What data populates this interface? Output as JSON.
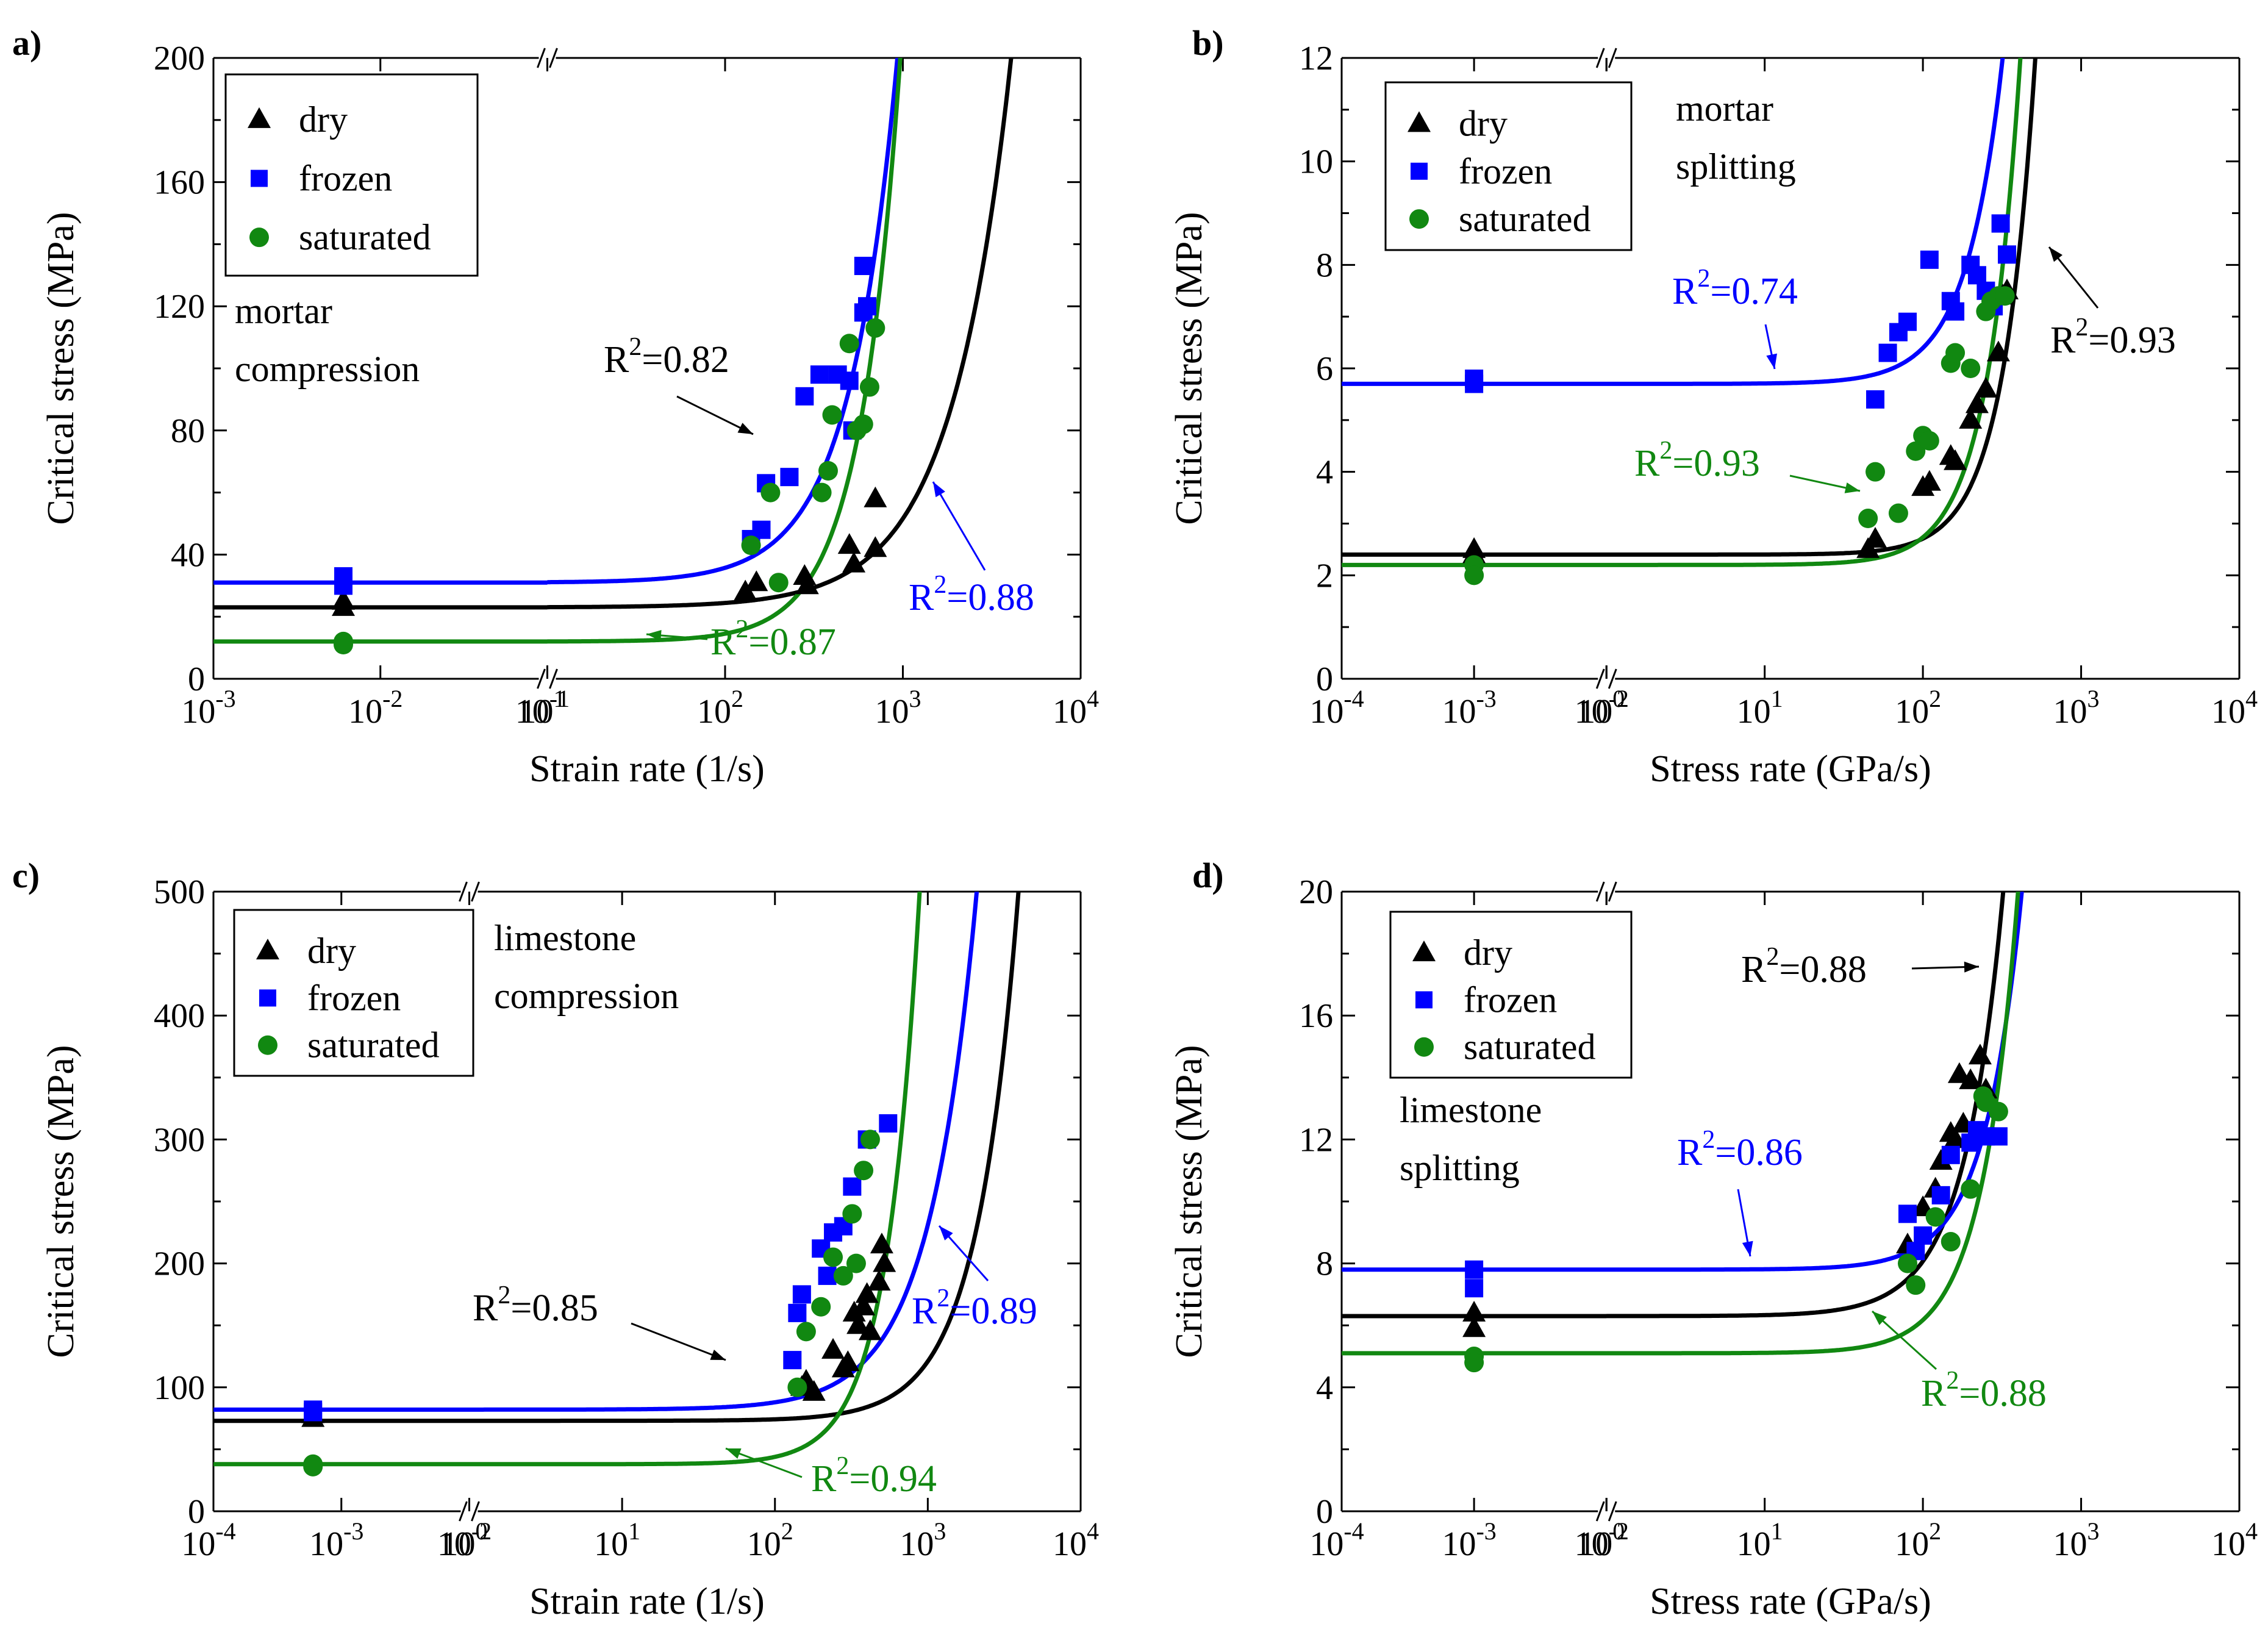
{
  "chart_data": [
    {
      "panel": "a)",
      "type": "scatter",
      "xlabel": "Strain rate (1/s)",
      "ylabel": "Critical stress (MPa)",
      "x_scale": "log, broken axis",
      "x_segments": [
        [
          -3,
          -1
        ],
        [
          1,
          4
        ]
      ],
      "x_ticks": [
        {
          "exp": -3,
          "label": "10"
        },
        {
          "exp": -2,
          "label": "10"
        },
        {
          "exp": -1,
          "label": "10"
        },
        {
          "exp": 1,
          "label": "10"
        },
        {
          "exp": 2,
          "label": "10"
        },
        {
          "exp": 3,
          "label": "10"
        },
        {
          "exp": 4,
          "label": "10"
        }
      ],
      "ylim": [
        0,
        200
      ],
      "y_ticks": [
        0,
        40,
        80,
        120,
        160,
        200
      ],
      "note_text": [
        "mortar",
        "compression"
      ],
      "legend": [
        "dry",
        "frozen",
        "saturated"
      ],
      "series": [
        {
          "name": "dry",
          "color": "#000000",
          "marker": "triangle",
          "points": [
            [
              0.006,
              23
            ],
            [
              0.006,
              25
            ],
            [
              130,
              28
            ],
            [
              150,
              31
            ],
            [
              280,
              33
            ],
            [
              290,
              30
            ],
            [
              500,
              43
            ],
            [
              530,
              37
            ],
            [
              700,
              58
            ],
            [
              700,
              42
            ]
          ],
          "fit": {
            "base": 23,
            "a": 0.0036,
            "b": 1.3
          },
          "r2": "0.82"
        },
        {
          "name": "frozen",
          "color": "#0000ff",
          "marker": "square",
          "points": [
            [
              0.006,
              33
            ],
            [
              0.006,
              30
            ],
            [
              140,
              45
            ],
            [
              160,
              48
            ],
            [
              170,
              63
            ],
            [
              230,
              65
            ],
            [
              280,
              91
            ],
            [
              340,
              98
            ],
            [
              430,
              98
            ],
            [
              500,
              96
            ],
            [
              520,
              80
            ],
            [
              600,
              118
            ],
            [
              600,
              133
            ],
            [
              630,
              120
            ]
          ],
          "fit": {
            "base": 31,
            "a": 0.003,
            "b": 1.6
          },
          "r2": "0.88"
        },
        {
          "name": "saturated",
          "color": "#118811",
          "marker": "circle",
          "points": [
            [
              0.006,
              12
            ],
            [
              0.006,
              11
            ],
            [
              140,
              43
            ],
            [
              180,
              60
            ],
            [
              200,
              31
            ],
            [
              350,
              60
            ],
            [
              380,
              67
            ],
            [
              400,
              85
            ],
            [
              500,
              108
            ],
            [
              550,
              80
            ],
            [
              600,
              82
            ],
            [
              650,
              94
            ],
            [
              700,
              113
            ]
          ],
          "fit": {
            "base": 12,
            "a": 0.0004,
            "b": 1.9
          },
          "r2": "0.87"
        }
      ]
    },
    {
      "panel": "b)",
      "type": "scatter",
      "xlabel": "Stress rate (GPa/s)",
      "ylabel": "Critical stress (MPa)",
      "x_scale": "log, broken axis",
      "x_segments": [
        [
          -4,
          -2
        ],
        [
          0,
          4
        ]
      ],
      "x_ticks": [
        {
          "exp": -4,
          "label": "10"
        },
        {
          "exp": -3,
          "label": "10"
        },
        {
          "exp": -2,
          "label": "10"
        },
        {
          "exp": 0,
          "label": "10"
        },
        {
          "exp": 1,
          "label": "10"
        },
        {
          "exp": 2,
          "label": "10"
        },
        {
          "exp": 3,
          "label": "10"
        },
        {
          "exp": 4,
          "label": "10"
        }
      ],
      "ylim": [
        0,
        12
      ],
      "y_ticks": [
        0,
        2,
        4,
        6,
        8,
        10,
        12
      ],
      "note_text": [
        "mortar",
        "splitting"
      ],
      "legend": [
        "dry",
        "frozen",
        "saturated"
      ],
      "series": [
        {
          "name": "dry",
          "color": "#000000",
          "marker": "triangle",
          "points": [
            [
              0.001,
              2.5
            ],
            [
              0.001,
              2.4
            ],
            [
              45,
              2.5
            ],
            [
              50,
              2.7
            ],
            [
              100,
              3.7
            ],
            [
              110,
              3.8
            ],
            [
              150,
              4.3
            ],
            [
              160,
              4.2
            ],
            [
              200,
              5.0
            ],
            [
              220,
              5.3
            ],
            [
              250,
              5.6
            ],
            [
              300,
              6.3
            ],
            [
              320,
              7.4
            ],
            [
              340,
              7.5
            ]
          ],
          "fit": {
            "base": 2.4,
            "a": 1.95e-05,
            "b": 2.1
          },
          "r2": "0.93"
        },
        {
          "name": "frozen",
          "color": "#0000ff",
          "marker": "square",
          "points": [
            [
              0.001,
              5.7
            ],
            [
              0.001,
              5.8
            ],
            [
              50,
              5.4
            ],
            [
              60,
              6.3
            ],
            [
              70,
              6.7
            ],
            [
              80,
              6.9
            ],
            [
              110,
              8.1
            ],
            [
              150,
              7.3
            ],
            [
              160,
              7.1
            ],
            [
              200,
              8.0
            ],
            [
              220,
              7.8
            ],
            [
              250,
              7.5
            ],
            [
              280,
              7.2
            ],
            [
              310,
              8.8
            ],
            [
              340,
              8.2
            ]
          ],
          "fit": {
            "base": 5.7,
            "a": 0.00011,
            "b": 1.9
          },
          "r2": "0.74"
        },
        {
          "name": "saturated",
          "color": "#118811",
          "marker": "circle",
          "points": [
            [
              0.001,
              2.2
            ],
            [
              0.001,
              2.0
            ],
            [
              45,
              3.1
            ],
            [
              50,
              4.0
            ],
            [
              70,
              3.2
            ],
            [
              90,
              4.4
            ],
            [
              100,
              4.7
            ],
            [
              110,
              4.6
            ],
            [
              150,
              6.1
            ],
            [
              160,
              6.3
            ],
            [
              200,
              6.0
            ],
            [
              250,
              7.1
            ],
            [
              270,
              7.3
            ],
            [
              300,
              7.4
            ],
            [
              330,
              7.4
            ]
          ],
          "fit": {
            "base": 2.2,
            "a": 4.25e-05,
            "b": 2.05
          },
          "r2": "0.93"
        }
      ]
    },
    {
      "panel": "c)",
      "type": "scatter",
      "xlabel": "Strain rate (1/s)",
      "ylabel": "Critical stress (MPa)",
      "x_scale": "log, broken axis",
      "x_segments": [
        [
          -4,
          -2
        ],
        [
          0,
          4
        ]
      ],
      "x_ticks": [
        {
          "exp": -4,
          "label": "10"
        },
        {
          "exp": -3,
          "label": "10"
        },
        {
          "exp": -2,
          "label": "10"
        },
        {
          "exp": 0,
          "label": "10"
        },
        {
          "exp": 1,
          "label": "10"
        },
        {
          "exp": 2,
          "label": "10"
        },
        {
          "exp": 3,
          "label": "10"
        },
        {
          "exp": 4,
          "label": "10"
        }
      ],
      "ylim": [
        0,
        500
      ],
      "y_ticks": [
        0,
        100,
        200,
        300,
        400,
        500
      ],
      "note_text": [
        "limestone",
        "compression"
      ],
      "legend": [
        "dry",
        "frozen",
        "saturated"
      ],
      "series": [
        {
          "name": "dry",
          "color": "#000000",
          "marker": "triangle",
          "points": [
            [
              0.0006,
              75
            ],
            [
              0.0006,
              78
            ],
            [
              150,
              100
            ],
            [
              160,
              105
            ],
            [
              180,
              96
            ],
            [
              240,
              130
            ],
            [
              280,
              115
            ],
            [
              300,
              120
            ],
            [
              330,
              160
            ],
            [
              350,
              150
            ],
            [
              380,
              165
            ],
            [
              400,
              175
            ],
            [
              420,
              145
            ],
            [
              480,
              185
            ],
            [
              500,
              215
            ],
            [
              520,
              200
            ]
          ],
          "fit": {
            "base": 73,
            "a": 0.00076,
            "b": 1.6
          },
          "r2": "0.85"
        },
        {
          "name": "frozen",
          "color": "#0000ff",
          "marker": "square",
          "points": [
            [
              0.0006,
              82
            ],
            [
              0.0006,
              80
            ],
            [
              130,
              122
            ],
            [
              140,
              160
            ],
            [
              150,
              175
            ],
            [
              200,
              212
            ],
            [
              220,
              190
            ],
            [
              240,
              225
            ],
            [
              280,
              230
            ],
            [
              320,
              262
            ],
            [
              400,
              300
            ],
            [
              550,
              313
            ]
          ],
          "fit": {
            "base": 82,
            "a": 0.0094,
            "b": 1.4
          },
          "r2": "0.89"
        },
        {
          "name": "saturated",
          "color": "#118811",
          "marker": "circle",
          "points": [
            [
              0.0006,
              38
            ],
            [
              0.0006,
              36
            ],
            [
              140,
              100
            ],
            [
              160,
              145
            ],
            [
              200,
              165
            ],
            [
              240,
              205
            ],
            [
              280,
              190
            ],
            [
              320,
              240
            ],
            [
              340,
              200
            ],
            [
              380,
              275
            ],
            [
              420,
              300
            ]
          ],
          "fit": {
            "base": 38,
            "a": 0.00059,
            "b": 2.0
          },
          "r2": "0.94"
        }
      ]
    },
    {
      "panel": "d)",
      "type": "scatter",
      "xlabel": "Stress rate (GPa/s)",
      "ylabel": "Critical stress (MPa)",
      "x_scale": "log, broken axis",
      "x_segments": [
        [
          -4,
          -2
        ],
        [
          0,
          4
        ]
      ],
      "x_ticks": [
        {
          "exp": -4,
          "label": "10"
        },
        {
          "exp": -3,
          "label": "10"
        },
        {
          "exp": -2,
          "label": "10"
        },
        {
          "exp": 0,
          "label": "10"
        },
        {
          "exp": 1,
          "label": "10"
        },
        {
          "exp": 2,
          "label": "10"
        },
        {
          "exp": 3,
          "label": "10"
        },
        {
          "exp": 4,
          "label": "10"
        }
      ],
      "ylim": [
        0,
        20
      ],
      "y_ticks": [
        0,
        4,
        8,
        12,
        16,
        20
      ],
      "note_text": [
        "limestone",
        "splitting"
      ],
      "legend": [
        "dry",
        "frozen",
        "saturated"
      ],
      "series": [
        {
          "name": "dry",
          "color": "#000000",
          "marker": "triangle",
          "points": [
            [
              0.001,
              6.4
            ],
            [
              0.001,
              5.9
            ],
            [
              80,
              8.6
            ],
            [
              100,
              9.8
            ],
            [
              120,
              10.4
            ],
            [
              130,
              11.3
            ],
            [
              150,
              12.2
            ],
            [
              160,
              12.0
            ],
            [
              170,
              14.1
            ],
            [
              180,
              12.5
            ],
            [
              200,
              13.9
            ],
            [
              230,
              14.7
            ],
            [
              250,
              13.6
            ]
          ],
          "fit": {
            "base": 6.3,
            "a": 0.00056,
            "b": 1.75
          },
          "r2": "0.88"
        },
        {
          "name": "frozen",
          "color": "#0000ff",
          "marker": "square",
          "points": [
            [
              0.001,
              7.8
            ],
            [
              0.001,
              7.2
            ],
            [
              80,
              9.6
            ],
            [
              90,
              8.4
            ],
            [
              100,
              8.9
            ],
            [
              130,
              10.2
            ],
            [
              150,
              11.5
            ],
            [
              200,
              11.9
            ],
            [
              220,
              12.3
            ],
            [
              250,
              12.1
            ],
            [
              300,
              12.1
            ]
          ],
          "fit": {
            "base": 7.8,
            "a": 0.00017,
            "b": 1.85
          },
          "r2": "0.86"
        },
        {
          "name": "saturated",
          "color": "#118811",
          "marker": "circle",
          "points": [
            [
              0.001,
              5.0
            ],
            [
              0.001,
              4.8
            ],
            [
              80,
              8.0
            ],
            [
              90,
              7.3
            ],
            [
              120,
              9.5
            ],
            [
              150,
              8.7
            ],
            [
              200,
              10.4
            ],
            [
              240,
              13.4
            ],
            [
              250,
              13.2
            ],
            [
              300,
              12.9
            ]
          ],
          "fit": {
            "base": 5.1,
            "a": 0.00017,
            "b": 1.9
          },
          "r2": "0.88"
        }
      ]
    }
  ]
}
